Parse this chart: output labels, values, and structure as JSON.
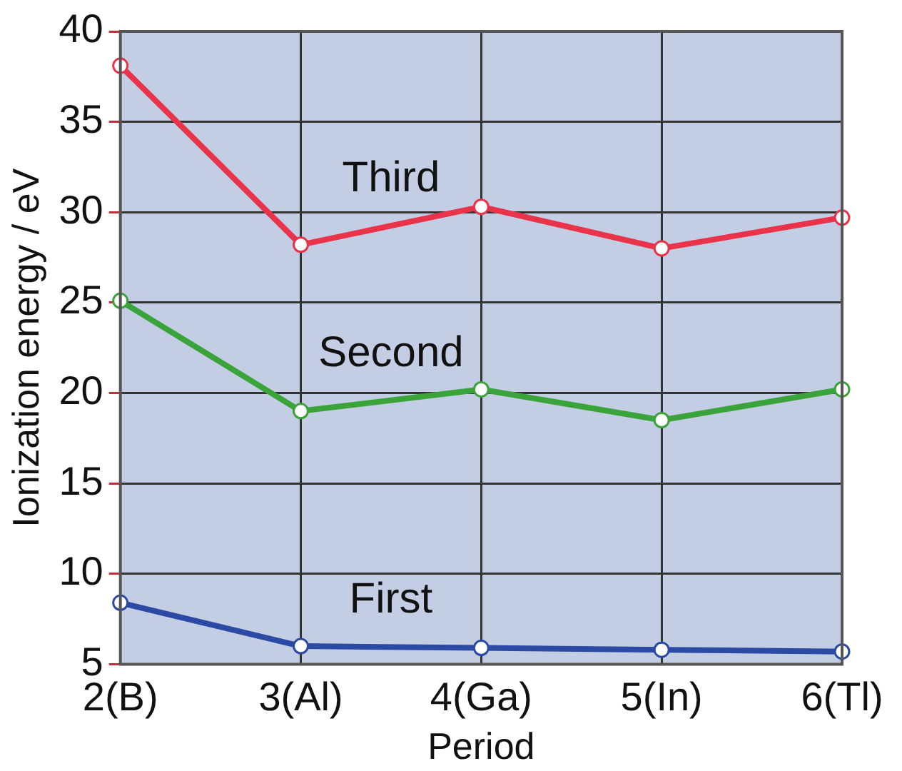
{
  "chart_data": {
    "type": "line",
    "xlabel": "Period",
    "ylabel": "Ionization energy / eV",
    "categories": [
      "2(B)",
      "3(Al)",
      "4(Ga)",
      "5(In)",
      "6(Tl)"
    ],
    "series": [
      {
        "name": "Third",
        "color": "#e8334a",
        "values": [
          38.1,
          28.2,
          30.3,
          28.0,
          29.7
        ]
      },
      {
        "name": "Second",
        "color": "#3aa33a",
        "values": [
          25.1,
          19.0,
          20.2,
          18.5,
          20.2
        ]
      },
      {
        "name": "First",
        "color": "#2b4aa3",
        "values": [
          8.4,
          6.0,
          5.9,
          5.8,
          5.7
        ]
      }
    ],
    "ylim": [
      5,
      40
    ],
    "yticks": [
      5,
      10,
      15,
      20,
      25,
      30,
      35,
      40
    ],
    "grid": true,
    "marker": "circle",
    "line_style": "solid"
  }
}
